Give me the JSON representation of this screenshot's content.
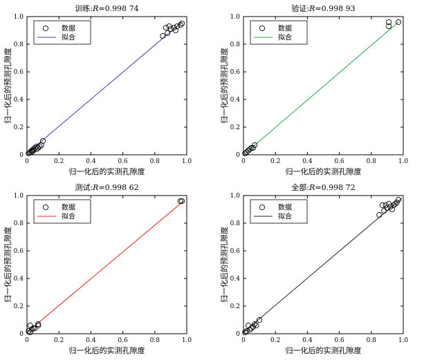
{
  "chart_data": [
    {
      "type": "scatter",
      "title_prefix": "训练:",
      "title_r": "R",
      "title_value": "=0.998 74",
      "xlabel": "归一化后的实测孔隙度",
      "ylabel": "归一化后的预测孔隙度",
      "xlim": [
        0,
        1
      ],
      "ylim": [
        0,
        1
      ],
      "xticks": [
        "0",
        "0.2",
        "0.4",
        "0.6",
        "0.8",
        "1.0"
      ],
      "yticks": [
        "0",
        "0.2",
        "0.4",
        "0.6",
        "0.8",
        "1.0"
      ],
      "legend": {
        "data_label": "数据",
        "fit_label": "拟合",
        "position": "top-left"
      },
      "fit_color": "#3b3bb5",
      "fit_line": {
        "x": [
          0,
          0.97
        ],
        "y": [
          0.01,
          0.96
        ]
      },
      "points": [
        [
          0.01,
          0.01
        ],
        [
          0.02,
          0.02
        ],
        [
          0.03,
          0.02
        ],
        [
          0.03,
          0.03
        ],
        [
          0.04,
          0.04
        ],
        [
          0.04,
          0.03
        ],
        [
          0.05,
          0.05
        ],
        [
          0.06,
          0.04
        ],
        [
          0.06,
          0.06
        ],
        [
          0.07,
          0.05
        ],
        [
          0.08,
          0.06
        ],
        [
          0.09,
          0.07
        ],
        [
          0.1,
          0.1
        ],
        [
          0.85,
          0.86
        ],
        [
          0.87,
          0.92
        ],
        [
          0.88,
          0.88
        ],
        [
          0.89,
          0.93
        ],
        [
          0.9,
          0.91
        ],
        [
          0.92,
          0.92
        ],
        [
          0.93,
          0.9
        ],
        [
          0.94,
          0.93
        ],
        [
          0.96,
          0.94
        ],
        [
          0.97,
          0.95
        ]
      ]
    },
    {
      "type": "scatter",
      "title_prefix": "验证:",
      "title_r": "R",
      "title_value": "=0.998 93",
      "xlabel": "归一化后的实测孔隙度",
      "ylabel": "归一化后的预测孔隙度",
      "xlim": [
        0,
        1
      ],
      "ylim": [
        0,
        1
      ],
      "xticks": [
        "0",
        "0.2",
        "0.4",
        "0.6",
        "0.8",
        "1.0"
      ],
      "yticks": [
        "0",
        "0.2",
        "0.4",
        "0.6",
        "0.8",
        "1.0"
      ],
      "legend": {
        "data_label": "数据",
        "fit_label": "拟合",
        "position": "top-left"
      },
      "fit_color": "#22a34a",
      "fit_line": {
        "x": [
          0.01,
          0.97
        ],
        "y": [
          0.01,
          0.96
        ]
      },
      "points": [
        [
          0.01,
          0.01
        ],
        [
          0.02,
          0.02
        ],
        [
          0.03,
          0.03
        ],
        [
          0.04,
          0.04
        ],
        [
          0.05,
          0.05
        ],
        [
          0.06,
          0.05
        ],
        [
          0.07,
          0.07
        ],
        [
          0.91,
          0.93
        ],
        [
          0.91,
          0.96
        ],
        [
          0.97,
          0.96
        ]
      ]
    },
    {
      "type": "scatter",
      "title_prefix": "测试:",
      "title_r": "R",
      "title_value": "=0.998 62",
      "xlabel": "归一化后的实测孔隙度",
      "ylabel": "归一化后的预测孔隙度",
      "xlim": [
        0,
        1
      ],
      "ylim": [
        0,
        1
      ],
      "xticks": [
        "0",
        "0.2",
        "0.4",
        "0.6",
        "0.8",
        "1.0"
      ],
      "yticks": [
        "0",
        "0.2",
        "0.4",
        "0.6",
        "0.8",
        "1.0"
      ],
      "legend": {
        "data_label": "数据",
        "fit_label": "拟合",
        "position": "top-left"
      },
      "fit_color": "#e02020",
      "fit_line": {
        "x": [
          0,
          0.98
        ],
        "y": [
          0.01,
          0.96
        ]
      },
      "points": [
        [
          0.01,
          0.02
        ],
        [
          0.02,
          0.01
        ],
        [
          0.02,
          0.06
        ],
        [
          0.03,
          0.03
        ],
        [
          0.04,
          0.04
        ],
        [
          0.05,
          0.04
        ],
        [
          0.07,
          0.06
        ],
        [
          0.07,
          0.07
        ],
        [
          0.96,
          0.96
        ],
        [
          0.97,
          0.96
        ]
      ]
    },
    {
      "type": "scatter",
      "title_prefix": "全部:",
      "title_r": "R",
      "title_value": "=0.998 72",
      "xlabel": "归一化后的实测孔隙度",
      "ylabel": "归一化后的预测孔隙度",
      "xlim": [
        0,
        1
      ],
      "ylim": [
        0,
        1
      ],
      "xticks": [
        "0",
        "0.2",
        "0.4",
        "0.6",
        "0.8",
        "1.0"
      ],
      "yticks": [
        "0",
        "0.2",
        "0.4",
        "0.6",
        "0.8",
        "1.0"
      ],
      "legend": {
        "data_label": "数据",
        "fit_label": "拟合",
        "position": "top-left"
      },
      "fit_color": "#222222",
      "fit_line": {
        "x": [
          0,
          0.99
        ],
        "y": [
          0.01,
          0.98
        ]
      },
      "points": [
        [
          0.01,
          0.01
        ],
        [
          0.02,
          0.02
        ],
        [
          0.03,
          0.06
        ],
        [
          0.04,
          0.03
        ],
        [
          0.05,
          0.04
        ],
        [
          0.06,
          0.05
        ],
        [
          0.07,
          0.07
        ],
        [
          0.08,
          0.06
        ],
        [
          0.1,
          0.1
        ],
        [
          0.85,
          0.86
        ],
        [
          0.87,
          0.93
        ],
        [
          0.88,
          0.89
        ],
        [
          0.89,
          0.93
        ],
        [
          0.9,
          0.91
        ],
        [
          0.91,
          0.94
        ],
        [
          0.92,
          0.92
        ],
        [
          0.93,
          0.9
        ],
        [
          0.94,
          0.93
        ],
        [
          0.95,
          0.94
        ],
        [
          0.96,
          0.95
        ],
        [
          0.97,
          0.97
        ]
      ]
    }
  ]
}
